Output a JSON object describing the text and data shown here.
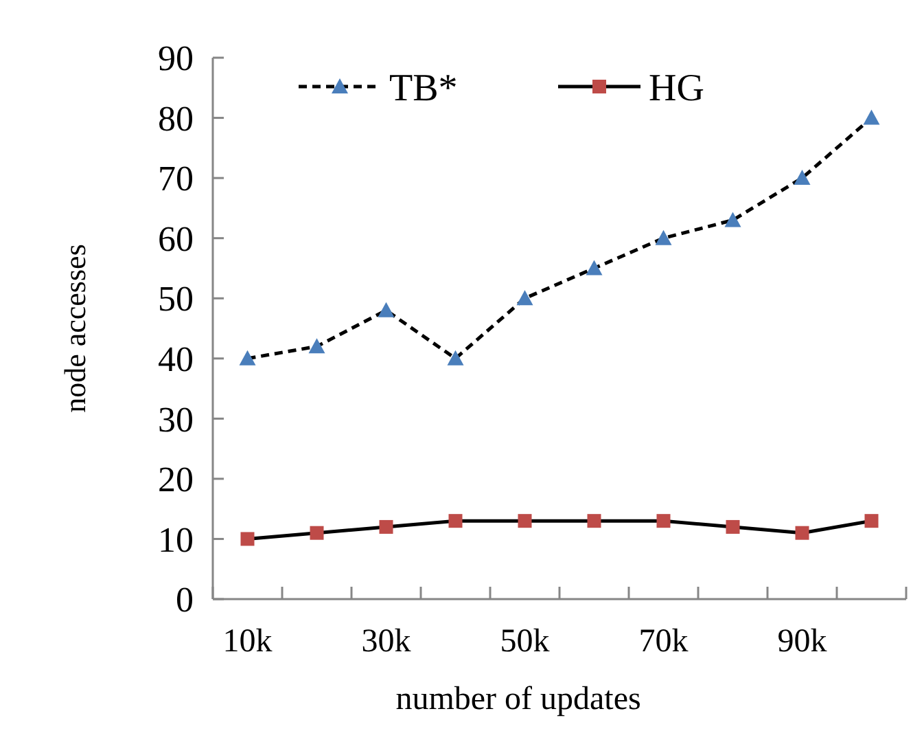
{
  "chart_data": {
    "type": "line",
    "xlabel": "number of updates",
    "ylabel": "node accesses",
    "categories": [
      "10k",
      null,
      "30k",
      null,
      "50k",
      null,
      "70k",
      null,
      "90k",
      null
    ],
    "ylim": [
      0,
      90
    ],
    "yticks": [
      0,
      10,
      20,
      30,
      40,
      50,
      60,
      70,
      80,
      90
    ],
    "grid": false,
    "legend": "top",
    "series": [
      {
        "name": "TB*",
        "color": "#4a7ebb",
        "values": [
          40,
          42,
          48,
          40,
          50,
          55,
          60,
          63,
          70,
          80
        ],
        "marker": "triangle",
        "line_style": "dashed"
      },
      {
        "name": "HG",
        "color": "#be4b48",
        "values": [
          10,
          11,
          12,
          13,
          13,
          13,
          13,
          12,
          11,
          13
        ],
        "marker": "square",
        "line_style": "solid"
      }
    ]
  }
}
